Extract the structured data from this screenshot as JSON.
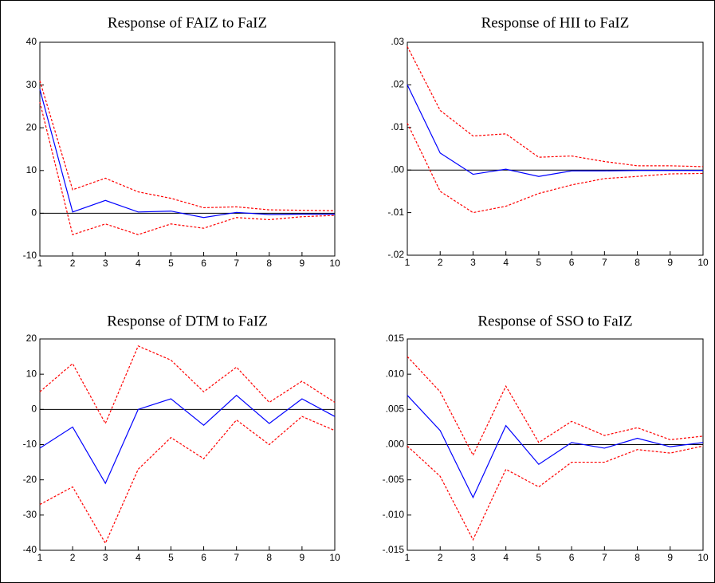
{
  "chart_data": [
    {
      "type": "line",
      "title": "Response of FAIZ to FaIZ",
      "x": [
        1,
        2,
        3,
        4,
        5,
        6,
        7,
        8,
        9,
        10
      ],
      "xlim": [
        1,
        10
      ],
      "xticks": [
        1,
        2,
        3,
        4,
        5,
        6,
        7,
        8,
        9,
        10
      ],
      "ylim": [
        -10,
        40
      ],
      "yticks": [
        -10,
        0,
        10,
        20,
        30,
        40
      ],
      "series": [
        {
          "color": "#0000ff",
          "dashed": false,
          "values": [
            29,
            0.3,
            3,
            0.3,
            0.5,
            -1,
            0.2,
            -0.3,
            -0.2,
            -0.2
          ]
        },
        {
          "color": "#ff0000",
          "dashed": true,
          "values": [
            31,
            5.5,
            8.2,
            5,
            3.5,
            1.3,
            1.5,
            0.8,
            0.7,
            0.6
          ]
        },
        {
          "color": "#ff0000",
          "dashed": true,
          "values": [
            26,
            -5,
            -2.5,
            -5,
            -2.5,
            -3.5,
            -1,
            -1.5,
            -0.8,
            -0.5
          ]
        }
      ]
    },
    {
      "type": "line",
      "title": "Response of HII to FaIZ",
      "x": [
        1,
        2,
        3,
        4,
        5,
        6,
        7,
        8,
        9,
        10
      ],
      "xlim": [
        1,
        10
      ],
      "xticks": [
        1,
        2,
        3,
        4,
        5,
        6,
        7,
        8,
        9,
        10
      ],
      "ylim": [
        -0.02,
        0.03
      ],
      "yticks": [
        {
          "value": -0.02,
          "label": "-.02"
        },
        {
          "value": -0.01,
          "label": "-.01"
        },
        {
          "value": 0,
          "label": ".00"
        },
        {
          "value": 0.01,
          "label": ".01"
        },
        {
          "value": 0.02,
          "label": ".02"
        },
        {
          "value": 0.03,
          "label": ".03"
        }
      ],
      "series": [
        {
          "color": "#0000ff",
          "dashed": false,
          "values": [
            0.02,
            0.004,
            -0.001,
            0.0002,
            -0.0015,
            -0.0002,
            -0.0002,
            -0.0001,
            -0.0001,
            -0.0001
          ]
        },
        {
          "color": "#ff0000",
          "dashed": true,
          "values": [
            0.029,
            0.014,
            0.008,
            0.0085,
            0.003,
            0.0033,
            0.002,
            0.001,
            0.001,
            0.0008
          ]
        },
        {
          "color": "#ff0000",
          "dashed": true,
          "values": [
            0.011,
            -0.005,
            -0.01,
            -0.0085,
            -0.0055,
            -0.0035,
            -0.002,
            -0.0015,
            -0.0009,
            -0.0008
          ]
        }
      ]
    },
    {
      "type": "line",
      "title": "Response of DTM to FaIZ",
      "x": [
        1,
        2,
        3,
        4,
        5,
        6,
        7,
        8,
        9,
        10
      ],
      "xlim": [
        1,
        10
      ],
      "xticks": [
        1,
        2,
        3,
        4,
        5,
        6,
        7,
        8,
        9,
        10
      ],
      "ylim": [
        -40,
        20
      ],
      "yticks": [
        -40,
        -30,
        -20,
        -10,
        0,
        10,
        20
      ],
      "series": [
        {
          "color": "#0000ff",
          "dashed": false,
          "values": [
            -11,
            -5,
            -21,
            0,
            3,
            -4.5,
            4,
            -4,
            3,
            -2
          ]
        },
        {
          "color": "#ff0000",
          "dashed": true,
          "values": [
            5,
            13,
            -4,
            18,
            14,
            5,
            12,
            2,
            8,
            2
          ]
        },
        {
          "color": "#ff0000",
          "dashed": true,
          "values": [
            -27,
            -22,
            -38,
            -17,
            -8,
            -14,
            -3,
            -10,
            -2,
            -6
          ]
        }
      ]
    },
    {
      "type": "line",
      "title": "Response of SSO to FaIZ",
      "x": [
        1,
        2,
        3,
        4,
        5,
        6,
        7,
        8,
        9,
        10
      ],
      "xlim": [
        1,
        10
      ],
      "xticks": [
        1,
        2,
        3,
        4,
        5,
        6,
        7,
        8,
        9,
        10
      ],
      "ylim": [
        -0.015,
        0.015
      ],
      "yticks": [
        {
          "value": -0.015,
          "label": "-.015"
        },
        {
          "value": -0.01,
          "label": "-.010"
        },
        {
          "value": -0.005,
          "label": "-.005"
        },
        {
          "value": 0,
          "label": ".000"
        },
        {
          "value": 0.005,
          "label": ".005"
        },
        {
          "value": 0.01,
          "label": ".010"
        },
        {
          "value": 0.015,
          "label": ".015"
        }
      ],
      "series": [
        {
          "color": "#0000ff",
          "dashed": false,
          "values": [
            0.007,
            0.002,
            -0.0075,
            0.0027,
            -0.0028,
            0.0003,
            -0.0005,
            0.0009,
            -0.0003,
            0.0003
          ]
        },
        {
          "color": "#ff0000",
          "dashed": true,
          "values": [
            0.0125,
            0.0075,
            -0.0015,
            0.0083,
            0.0003,
            0.0033,
            0.0013,
            0.0024,
            0.0007,
            0.0012
          ]
        },
        {
          "color": "#ff0000",
          "dashed": true,
          "values": [
            -0.0002,
            -0.0045,
            -0.0135,
            -0.0035,
            -0.006,
            -0.0025,
            -0.0025,
            -0.0007,
            -0.0012,
            -0.0002
          ]
        }
      ]
    }
  ]
}
